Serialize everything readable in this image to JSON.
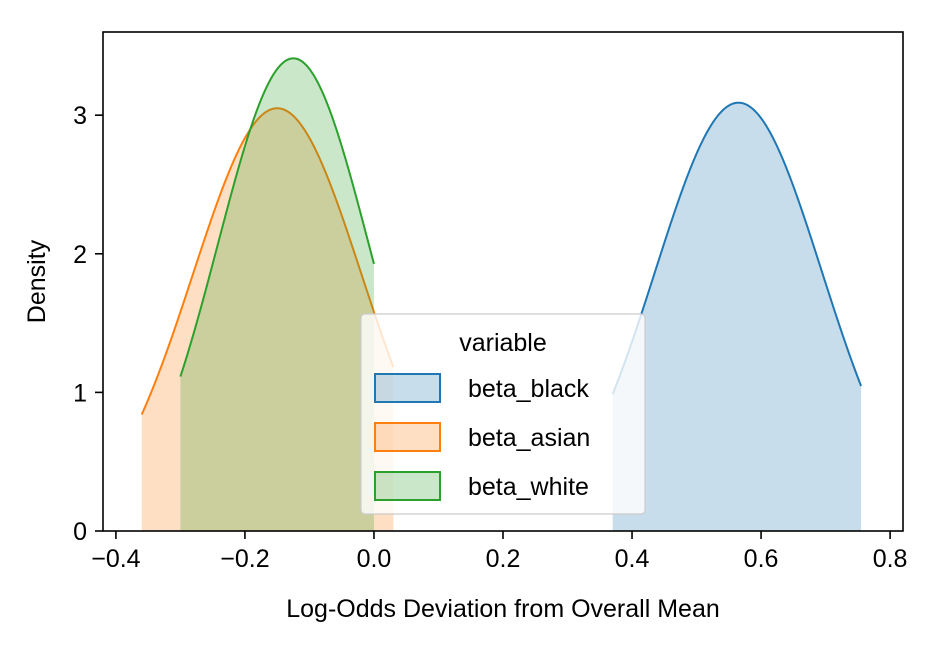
{
  "chart_data": {
    "type": "area",
    "title": "",
    "xlabel": "Log-Odds Deviation from Overall Mean",
    "ylabel": "Density",
    "xlim": [
      -0.42,
      0.82
    ],
    "ylim": [
      0,
      3.6
    ],
    "xticks": [
      -0.4,
      -0.2,
      0.0,
      0.2,
      0.4,
      0.6,
      0.8
    ],
    "xtick_labels": [
      "−0.4",
      "−0.2",
      "0.0",
      "0.2",
      "0.4",
      "0.6",
      "0.8"
    ],
    "yticks": [
      0,
      1,
      2,
      3
    ],
    "ytick_labels": [
      "0",
      "1",
      "2",
      "3"
    ],
    "grid": false,
    "legend": {
      "title": "variable",
      "placement": "center"
    },
    "series": [
      {
        "name": "beta_black",
        "color": "#1f77b4",
        "peak_x": 0.565,
        "peak_density": 3.09,
        "support": [
          0.37,
          0.755
        ]
      },
      {
        "name": "beta_asian",
        "color": "#ff7f0e",
        "peak_x": -0.15,
        "peak_density": 3.05,
        "support": [
          -0.36,
          0.03
        ]
      },
      {
        "name": "beta_white",
        "color": "#2ca02c",
        "peak_x": -0.125,
        "peak_density": 3.41,
        "support": [
          -0.3,
          0.0
        ]
      }
    ]
  }
}
